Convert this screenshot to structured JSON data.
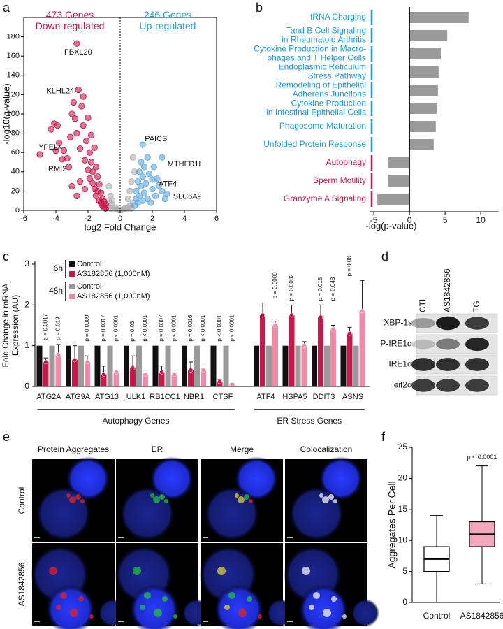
{
  "panel_labels": [
    "a",
    "b",
    "c",
    "d",
    "e",
    "f"
  ],
  "chart_data": [
    {
      "type": "scatter",
      "xlabel": "log2 Fold Change",
      "ylabel": "-log10(q-value)",
      "xlim": [
        -6,
        6
      ],
      "xticks": [
        -6,
        -4,
        -2,
        0,
        2,
        4,
        6
      ],
      "ylim": [
        0,
        200
      ],
      "yticks": [
        0,
        20,
        40,
        60,
        80,
        100,
        120,
        140,
        160,
        180
      ],
      "zero_line": true,
      "group_labels": [
        {
          "text": "473 Genes\nDown-regulated",
          "color": "#c8174a"
        },
        {
          "text": "246 Genes\nUp-regulated",
          "color": "#2a9fd8"
        }
      ],
      "series": [
        {
          "color": "#b0b0b0",
          "x": [
            -0.8,
            -0.7,
            -0.6,
            -0.5,
            -0.4,
            -0.3,
            -0.2,
            -0.1,
            0,
            0.1,
            0.2,
            0.3,
            0.4,
            0.5,
            0.6,
            0.7,
            0.8,
            0.9,
            0.8,
            0.6,
            -0.6,
            -0.7,
            0.5,
            -0.5,
            0.7
          ],
          "values": [
            4,
            10,
            2,
            6,
            1,
            3,
            1,
            0.5,
            0.3,
            0.5,
            1,
            2,
            1,
            3,
            5,
            2,
            8,
            40,
            55,
            20,
            15,
            25,
            12,
            10,
            30
          ]
        },
        {
          "color": "#c8174a",
          "x": [
            -4.3,
            -4.1,
            -3.9,
            -3.8,
            -3.5,
            -3.3,
            -3.2,
            -3.1,
            -3.0,
            -2.9,
            -2.8,
            -2.7,
            -2.5,
            -2.4,
            -2.3,
            -2.3,
            -2.2,
            -2.1,
            -2.0,
            -2.0,
            -1.9,
            -1.9,
            -1.8,
            -1.8,
            -1.7,
            -1.7,
            -1.6,
            -1.6,
            -1.5,
            -1.5,
            -1.4,
            -1.4,
            -1.3,
            -1.3,
            -1.2,
            -1.2,
            -1.1,
            -1.1,
            -1.0,
            -1.0,
            -0.9,
            -0.9,
            -2.5,
            -3.0,
            -2.7,
            -2.2,
            -4.0
          ],
          "values": [
            84,
            90,
            88,
            70,
            62,
            54,
            45,
            76,
            100,
            112,
            95,
            80,
            64,
            108,
            118,
            88,
            52,
            72,
            42,
            96,
            60,
            33,
            78,
            50,
            40,
            28,
            65,
            22,
            45,
            15,
            35,
            20,
            10,
            27,
            8,
            18,
            12,
            5,
            9,
            3,
            6,
            2,
            30,
            25,
            15,
            22,
            62
          ]
        },
        {
          "color": "#5fa8dc",
          "x": [
            0.9,
            1.0,
            1.0,
            1.1,
            1.1,
            1.2,
            1.2,
            1.3,
            1.3,
            1.4,
            1.4,
            1.5,
            1.5,
            1.6,
            1.7,
            1.7,
            1.8,
            2.0,
            2.1,
            2.2,
            2.3,
            2.4,
            2.6,
            2.8,
            1.9
          ],
          "values": [
            5,
            12,
            20,
            8,
            30,
            15,
            40,
            25,
            50,
            10,
            35,
            45,
            18,
            28,
            55,
            12,
            38,
            22,
            45,
            15,
            33,
            26,
            20,
            12,
            8
          ]
        }
      ],
      "annotations": [
        {
          "text": "FBXL20",
          "x": -2.7,
          "y": 173
        },
        {
          "text": "KLHL24",
          "x": -2.6,
          "y": 125
        },
        {
          "text": "YPEL4",
          "x": -5.0,
          "y": 58
        },
        {
          "text": "RMI2",
          "x": -3.6,
          "y": 53
        },
        {
          "text": "PAICS",
          "x": 1.4,
          "y": 68
        },
        {
          "text": "MTHFD1L",
          "x": 2.6,
          "y": 55
        },
        {
          "text": "ATF4",
          "x": 2.0,
          "y": 32
        },
        {
          "text": "SLC6A9",
          "x": 2.9,
          "y": 17
        }
      ]
    },
    {
      "type": "bar",
      "orientation": "horizontal",
      "xlabel": "-log(p-value)",
      "color": "#9a9a9a",
      "categories": [
        "tRNA Charging",
        "Tand B Cell Signaling\nin Rheumatoid Arthritis",
        "Cytokine Production in Macro-\nphages and T Helper Cells",
        "Endoplasmic Reticulum\nStress Pathway",
        "Remodeling of Epithelial\nAdherens Junctions",
        "Cytokine Production\nin Intestinal Epithelial Cells",
        "Phagosome Maturation",
        "Unfolded Protein Response",
        "Autophagy",
        "Sperm Motility",
        "Granzyme A Signaling"
      ],
      "values": [
        8.3,
        5.3,
        4.4,
        4.1,
        4.0,
        3.9,
        3.7,
        3.4,
        -3.0,
        -3.0,
        -4.5
      ],
      "label_colors": [
        "#1a9bd7",
        "#1a9bd7",
        "#1a9bd7",
        "#1a9bd7",
        "#1a9bd7",
        "#1a9bd7",
        "#1a9bd7",
        "#1a9bd7",
        "#c8174a",
        "#c8174a",
        "#c8174a"
      ],
      "xlim": [
        -5.5,
        12.5
      ],
      "xticks": [
        -5,
        0,
        5,
        10
      ]
    },
    {
      "type": "bar",
      "orientation": "vertical",
      "ylabel": "Fold Change in mRNA\nExpression (AU)",
      "categories": [
        "ATG2A",
        "ATG9A",
        "ATG13",
        "ULK1",
        "RB1CC1",
        "NBR1",
        "CTSF",
        "ATF4",
        "HSPA5",
        "DDIT3",
        "ASNS"
      ],
      "ylim": [
        0,
        3
      ],
      "yticks": [
        0,
        1,
        2,
        3
      ],
      "legend_groups": [
        {
          "label": "6h",
          "count": 2
        },
        {
          "label": "48h",
          "count": 2
        }
      ],
      "series": [
        {
          "name": "Control",
          "color": "#111111",
          "values": [
            1,
            1,
            1,
            1,
            1,
            1,
            1,
            1,
            1,
            1,
            1
          ]
        },
        {
          "name": "AS182856 (1,000nM)",
          "color": "#c8174a",
          "values": [
            0.6,
            0.65,
            0.3,
            0.45,
            0.35,
            0.4,
            0.12,
            1.75,
            1.75,
            1.7,
            1.3
          ],
          "errors": [
            0.1,
            0.35,
            0.2,
            0.3,
            0.15,
            0.2,
            0.05,
            0.3,
            0.25,
            0.3,
            0.15
          ],
          "p_values": [
            "p = 0.0017",
            null,
            "p = 0.0017",
            "p = 0.03",
            "p = 0.0007",
            "p = 0.0016",
            "p < 0.0001",
            null,
            "p = 0.0082",
            "p = 0.018",
            "p = 0.06"
          ]
        },
        {
          "name": "Control",
          "color": "#9a9a9a",
          "values": [
            1,
            1,
            1,
            1,
            1,
            1,
            1,
            1,
            1,
            1,
            1
          ]
        },
        {
          "name": "AS182856 (1,000nM)",
          "color": "#f08aa8",
          "values": [
            0.78,
            0.6,
            0.35,
            0.3,
            0.3,
            0.4,
            0.05,
            1.5,
            1.0,
            1.4,
            1.85
          ],
          "errors": [
            0.25,
            0.15,
            0.05,
            0.03,
            0.03,
            0.05,
            0.02,
            0.1,
            0.1,
            0.1,
            0.75
          ],
          "p_values": [
            "p = 0.019",
            "p = 0.0009",
            "p < 0.0001",
            "p < 0.0001",
            "p < 0.0001",
            "p < 0.0001",
            "p < 0.0001",
            "p = 0.0009",
            null,
            "p = 0.043",
            null
          ]
        }
      ],
      "category_groups": [
        {
          "label": "Autophagy Genes",
          "count": 7
        },
        {
          "label": "ER Stress Genes",
          "count": 4
        }
      ]
    },
    {
      "type": "box",
      "ylabel": "Aggregates Per Cell",
      "categories": [
        "Control",
        "AS1842856"
      ],
      "ylim": [
        0,
        25
      ],
      "yticks": [
        0,
        5,
        10,
        15,
        20,
        25
      ],
      "boxes": [
        {
          "min": 0,
          "q1": 5,
          "median": 7,
          "q3": 9,
          "max": 14,
          "color": "#ffffff"
        },
        {
          "min": 3,
          "q1": 9,
          "median": 11,
          "q3": 13,
          "max": 22,
          "color": "#f4a6bd"
        }
      ],
      "annotation": "p < 0.0001"
    }
  ],
  "blot": {
    "lanes": [
      "CTL",
      "AS1842856",
      "TG"
    ],
    "rows": [
      "XBP-1s",
      "P-IRE1α",
      "IRE1α",
      "eif2α"
    ]
  },
  "microscopy": {
    "columns": [
      "Protein Aggregates",
      "ER",
      "Merge",
      "Colocalization"
    ],
    "rows": [
      "Control",
      "AS1842856"
    ]
  }
}
